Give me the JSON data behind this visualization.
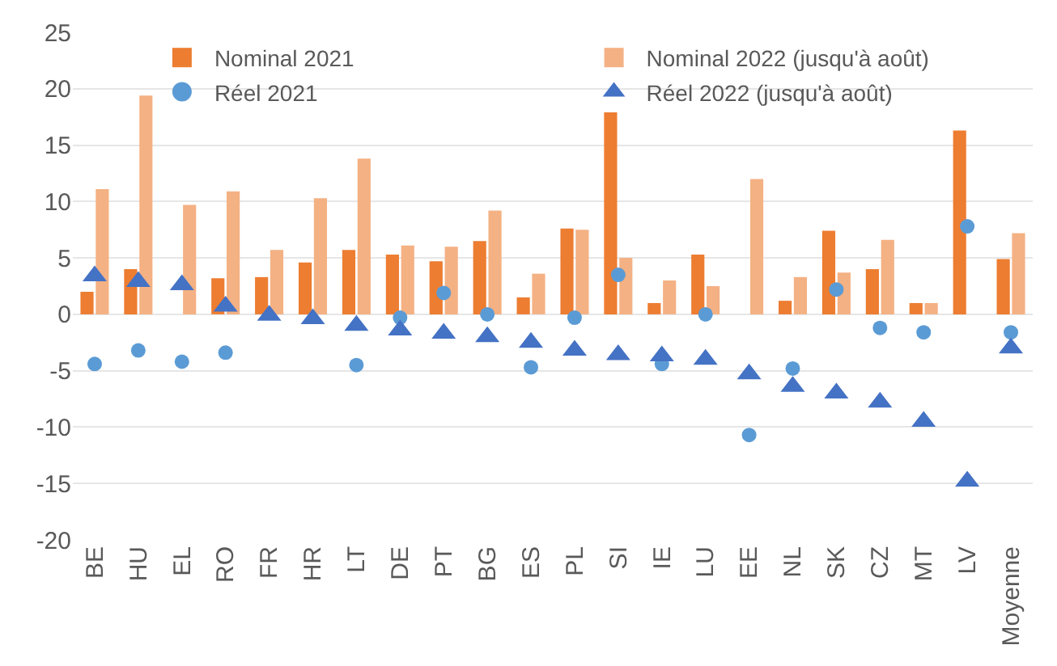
{
  "chart_data": {
    "type": "bar",
    "categories": [
      "BE",
      "HU",
      "EL",
      "RO",
      "FR",
      "HR",
      "LT",
      "DE",
      "PT",
      "BG",
      "ES",
      "PL",
      "SI",
      "IE",
      "LU",
      "EE",
      "NL",
      "SK",
      "CZ",
      "MT",
      "LV",
      "Moyenne"
    ],
    "series": [
      {
        "name": "Nominal 2021",
        "type": "bar",
        "color": "#ed7d31",
        "values": [
          2,
          4,
          null,
          3.2,
          3.3,
          4.6,
          5.7,
          5.3,
          4.7,
          6.5,
          1.5,
          7.6,
          17.9,
          1,
          5.3,
          null,
          1.2,
          7.4,
          4,
          1,
          16.3,
          4.9
        ]
      },
      {
        "name": "Nominal 2022 (jusqu'à août)",
        "type": "bar",
        "color": "#f4b183",
        "values": [
          11.1,
          19.4,
          9.7,
          10.9,
          5.7,
          10.3,
          13.8,
          6.1,
          6,
          9.2,
          3.6,
          7.5,
          5,
          3,
          2.5,
          12,
          3.3,
          3.7,
          6.6,
          1,
          null,
          7.2
        ]
      },
      {
        "name": "Réel 2021",
        "type": "scatter",
        "marker": "circle",
        "color": "#5b9bd5",
        "values": [
          -4.4,
          -3.2,
          -4.2,
          -3.4,
          null,
          null,
          -4.5,
          -0.3,
          1.9,
          0,
          -4.7,
          -0.3,
          3.5,
          -4.4,
          0,
          -10.7,
          -4.8,
          2.2,
          -1.2,
          -1.6,
          7.8,
          -1.6
        ]
      },
      {
        "name": "Réel 2022 (jusqu'à août)",
        "type": "scatter",
        "marker": "triangle",
        "color": "#4472c4",
        "values": [
          3.4,
          2.9,
          2.6,
          0.7,
          -0.1,
          -0.4,
          -1,
          -1.4,
          -1.7,
          -2,
          -2.5,
          -3.2,
          -3.6,
          -3.7,
          -4,
          -5.3,
          -6.4,
          -7,
          -7.8,
          -9.5,
          -14.8,
          -3
        ]
      }
    ],
    "ylim": [
      -20,
      25
    ],
    "yticks": [
      -20,
      -15,
      -10,
      -5,
      0,
      5,
      10,
      15,
      20,
      25
    ],
    "grid": "y",
    "legend": "top"
  }
}
